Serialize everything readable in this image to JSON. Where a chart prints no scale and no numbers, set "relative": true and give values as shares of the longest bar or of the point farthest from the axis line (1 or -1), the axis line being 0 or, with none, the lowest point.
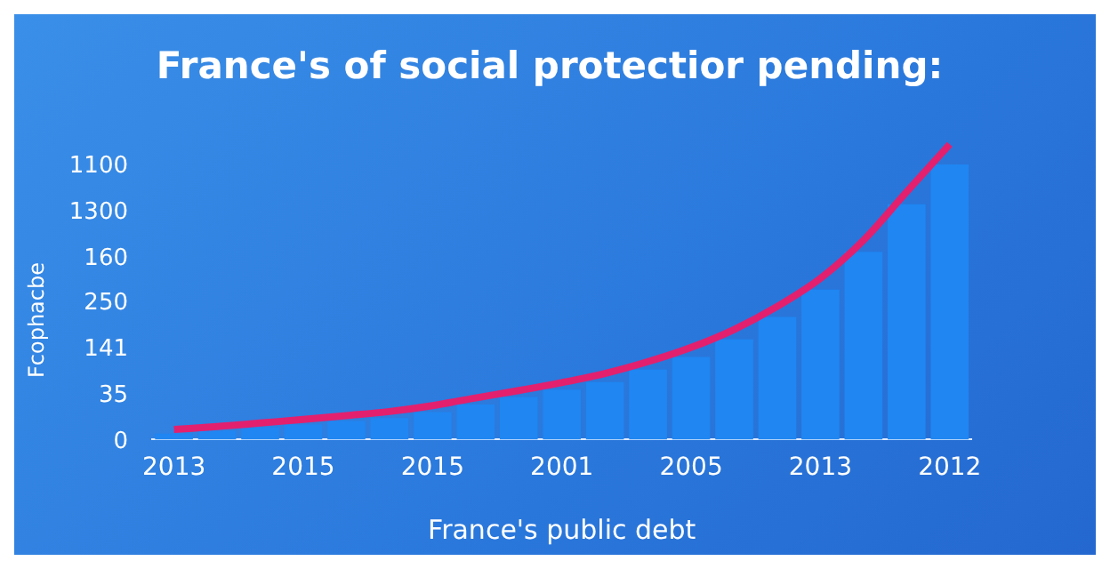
{
  "chart_data": {
    "type": "bar",
    "title": "France's of social protectior pending:",
    "xlabel": "France's public debt",
    "ylabel": "Fcophacbe",
    "relative": true,
    "categories": [
      "2013",
      null,
      null,
      "2015",
      null,
      null,
      "2015",
      null,
      null,
      "2001",
      null,
      null,
      "2005",
      null,
      null,
      "2013",
      null,
      null,
      "2012"
    ],
    "series": [
      {
        "color": "#1f86f2",
        "values": [
          0.02,
          0.03,
          0.042,
          0.051,
          0.063,
          0.073,
          0.093,
          0.119,
          0.144,
          0.169,
          0.195,
          0.237,
          0.28,
          0.339,
          0.415,
          0.508,
          0.636,
          0.797,
          0.932
        ]
      },
      {
        "type": "line",
        "color": "#e3206e",
        "values": [
          0.034,
          0.044,
          0.056,
          0.068,
          0.081,
          0.095,
          0.115,
          0.141,
          0.166,
          0.193,
          0.224,
          0.264,
          0.312,
          0.373,
          0.451,
          0.546,
          0.675,
          0.839,
          1
        ]
      }
    ],
    "annotations": [
      "1100",
      "1300",
      "160",
      "250",
      "141",
      "35",
      "0"
    ],
    "legend": false
  }
}
